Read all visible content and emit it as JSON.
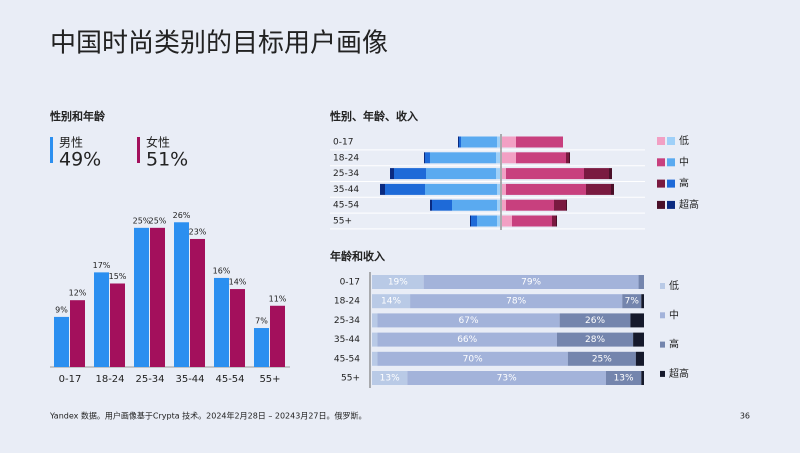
{
  "title": "中国时尚类别的目标用户画像",
  "chart_data": [
    {
      "type": "bar",
      "title": "性别和年龄",
      "categories": [
        "0-17",
        "18-24",
        "25-34",
        "35-44",
        "45-54",
        "55+"
      ],
      "ylim": [
        0,
        30
      ],
      "series": [
        {
          "name": "男性",
          "share_label": "49%",
          "color": "#2b8ff0",
          "values": [
            9,
            17,
            25,
            26,
            16,
            7
          ],
          "value_labels": [
            "9%",
            "17%",
            "25%",
            "26%",
            "16%",
            "7%"
          ]
        },
        {
          "name": "女性",
          "share_label": "51%",
          "color": "#a3105c",
          "values": [
            12,
            15,
            25,
            23,
            14,
            11
          ],
          "value_labels": [
            "12%",
            "15%",
            "25%",
            "23%",
            "14%",
            "11%"
          ]
        }
      ]
    },
    {
      "type": "butterfly",
      "title": "性别、年龄、收入",
      "categories": [
        "0-17",
        "18-24",
        "25-34",
        "35-44",
        "45-54",
        "55+"
      ],
      "xlim": [
        -13,
        13
      ],
      "series": [
        {
          "name": "低",
          "colors": [
            "#9fd0f8",
            "#f2a0c4"
          ],
          "male": [
            0.3,
            0.4,
            0.4,
            0.3,
            0.3,
            0.3
          ],
          "female": [
            1.4,
            1.4,
            0.4,
            0.4,
            0.4,
            1.0
          ]
        },
        {
          "name": "中",
          "colors": [
            "#5aaaf0",
            "#c8407e"
          ],
          "male": [
            3.6,
            6.6,
            7.0,
            7.2,
            4.5,
            2.0
          ],
          "female": [
            4.7,
            5.0,
            7.8,
            8.0,
            4.8,
            4.0
          ]
        },
        {
          "name": "高",
          "colors": [
            "#1e6ad8",
            "#7a1a40"
          ],
          "male": [
            0.2,
            0.5,
            3.2,
            4.0,
            2.0,
            0.6
          ],
          "female": [
            0,
            0.3,
            2.5,
            2.5,
            1.2,
            0.4
          ]
        },
        {
          "name": "超高",
          "colors": [
            "#0a2a80",
            "#4a0f28"
          ],
          "male": [
            0.1,
            0.1,
            0.4,
            0.5,
            0.2,
            0.1
          ],
          "female": [
            0,
            0.1,
            0.3,
            0.3,
            0.1,
            0.1
          ]
        }
      ]
    },
    {
      "type": "stacked",
      "title": "年龄和收入",
      "categories": [
        "0-17",
        "18-24",
        "25-34",
        "35-44",
        "45-54",
        "55+"
      ],
      "xlim": [
        0,
        100
      ],
      "series": [
        {
          "name": "低",
          "color": "#b9cae6",
          "values": [
            19,
            14,
            2,
            2,
            2,
            13
          ],
          "value_labels": [
            "19%",
            "14%",
            null,
            null,
            null,
            "13%"
          ]
        },
        {
          "name": "中",
          "color": "#a3b3da",
          "values": [
            79,
            78,
            67,
            66,
            70,
            73
          ],
          "value_labels": [
            "79%",
            "78%",
            "67%",
            "66%",
            "70%",
            "73%"
          ]
        },
        {
          "name": "高",
          "color": "#7485ad",
          "values": [
            2,
            7,
            26,
            28,
            25,
            13
          ],
          "value_labels": [
            null,
            "7%",
            "26%",
            "28%",
            "25%",
            "13%"
          ]
        },
        {
          "name": "超高",
          "color": "#15192b",
          "values": [
            0,
            1,
            5,
            4,
            3,
            1
          ]
        }
      ]
    }
  ],
  "footnote": "Yandex 数据。用户画像基于Crypta 技术。2024年2月28日 – 20243月27日。俄罗斯。",
  "page_number": "36"
}
